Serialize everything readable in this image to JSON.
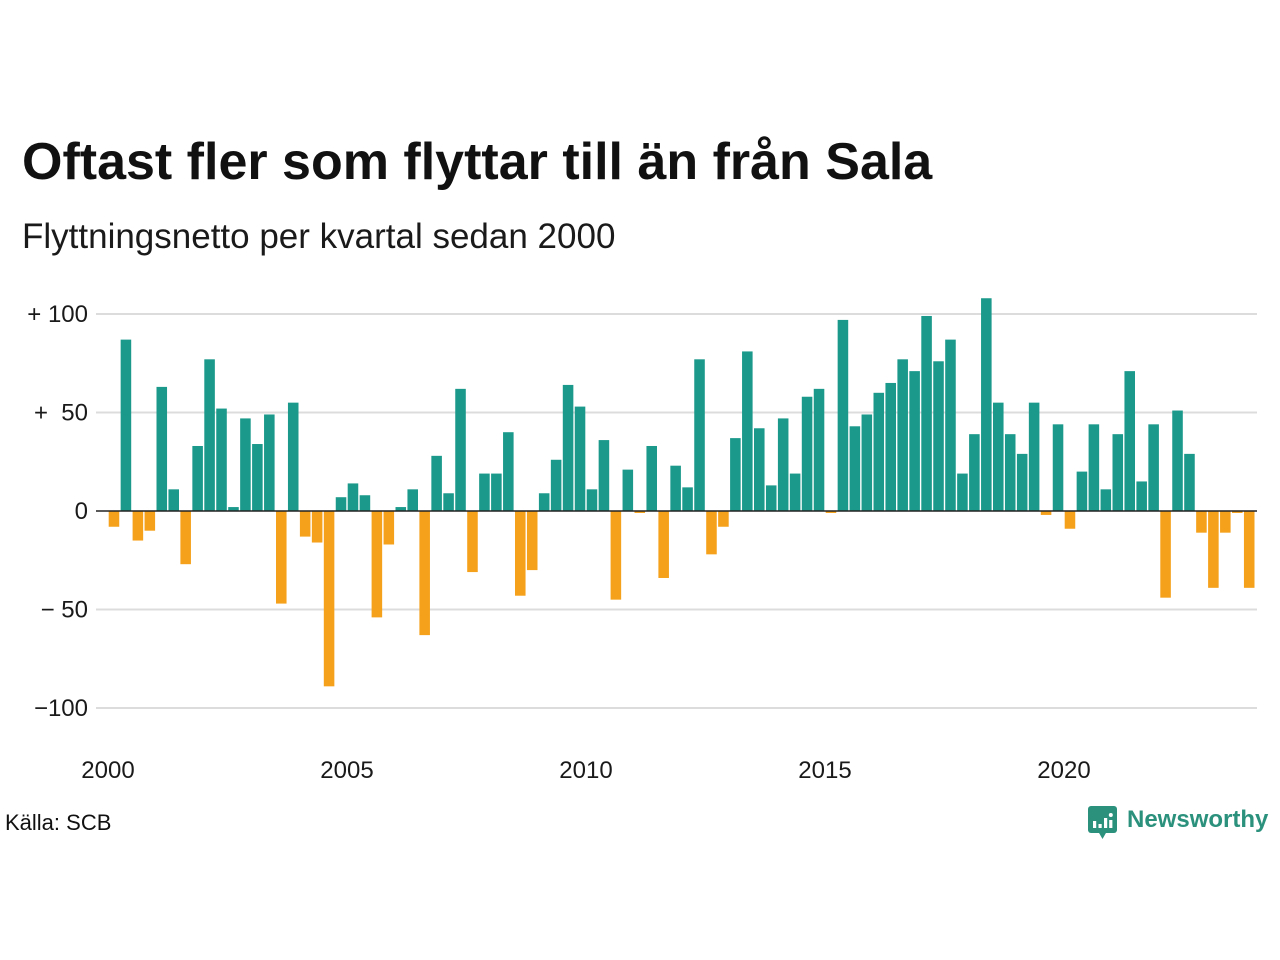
{
  "source": "Källa: SCB",
  "brand": {
    "name": "Newsworthy",
    "icon": "newsworthy-logo-icon",
    "color": "#2b917d"
  },
  "chart_data": {
    "type": "bar",
    "title": "Oftast fler som flyttar till än från Sala",
    "subtitle": "Flyttningsnetto per kvartal sedan 2000",
    "x": [
      "2000-01-01",
      "2000-04-01",
      "2000-07-01",
      "2000-10-01",
      "2001-01-01",
      "2001-04-01",
      "2001-07-01",
      "2001-10-01",
      "2002-01-01",
      "2002-04-01",
      "2002-07-01",
      "2002-10-01",
      "2003-01-01",
      "2003-04-01",
      "2003-07-01",
      "2003-10-01",
      "2004-01-01",
      "2004-04-01",
      "2004-07-01",
      "2004-10-01",
      "2005-01-01",
      "2005-04-01",
      "2005-07-01",
      "2005-10-01",
      "2006-01-01",
      "2006-04-01",
      "2006-07-01",
      "2006-10-01",
      "2007-01-01",
      "2007-04-01",
      "2007-07-01",
      "2007-10-01",
      "2008-01-01",
      "2008-04-01",
      "2008-07-01",
      "2008-10-01",
      "2009-01-01",
      "2009-04-01",
      "2009-07-01",
      "2009-10-01",
      "2010-01-01",
      "2010-04-01",
      "2010-07-01",
      "2010-10-01",
      "2011-01-01",
      "2011-04-01",
      "2011-07-01",
      "2011-10-01",
      "2012-01-01",
      "2012-04-01",
      "2012-07-01",
      "2012-10-01",
      "2013-01-01",
      "2013-04-01",
      "2013-07-01",
      "2013-10-01",
      "2014-01-01",
      "2014-04-01",
      "2014-07-01",
      "2014-10-01",
      "2015-01-01",
      "2015-04-01",
      "2015-07-01",
      "2015-10-01",
      "2016-01-01",
      "2016-04-01",
      "2016-07-01",
      "2016-10-01",
      "2017-01-01",
      "2017-04-01",
      "2017-07-01",
      "2017-10-01",
      "2018-01-01",
      "2018-04-01",
      "2018-07-01",
      "2018-10-01",
      "2019-01-01",
      "2019-04-01",
      "2019-07-01",
      "2019-10-01",
      "2020-01-01",
      "2020-04-01",
      "2020-07-01",
      "2020-10-01",
      "2021-01-01",
      "2021-04-01",
      "2021-07-01",
      "2021-10-01",
      "2022-01-01",
      "2022-04-01",
      "2022-07-01",
      "2022-10-01",
      "2023-01-01",
      "2023-04-01",
      "2023-07-01",
      "2023-10-01"
    ],
    "values": [
      -8,
      87,
      -15,
      -10,
      63,
      11,
      -27,
      33,
      77,
      52,
      2,
      47,
      34,
      49,
      -47,
      55,
      -13,
      -16,
      -89,
      7,
      14,
      8,
      -54,
      -17,
      2,
      11,
      -63,
      28,
      9,
      62,
      -31,
      19,
      19,
      40,
      -43,
      -30,
      9,
      26,
      64,
      53,
      11,
      36,
      -45,
      21,
      -1,
      33,
      -34,
      23,
      12,
      77,
      -22,
      -8,
      37,
      81,
      42,
      13,
      47,
      19,
      58,
      62,
      -1,
      97,
      43,
      49,
      60,
      65,
      77,
      71,
      99,
      76,
      87,
      19,
      39,
      108,
      55,
      39,
      29,
      55,
      -2,
      44,
      -9,
      20,
      44,
      11,
      39,
      71,
      15,
      44,
      -44,
      51,
      29,
      -11,
      -39,
      -11,
      -1,
      -39
    ],
    "xticks": [
      "2000",
      "2005",
      "2010",
      "2015",
      "2020"
    ],
    "yticks": [
      100,
      50,
      0,
      -50,
      -100
    ],
    "ytick_labels": [
      "+ 100",
      "+  50",
      "0",
      "− 50",
      "−100"
    ],
    "grid": true,
    "colors": {
      "positive": "#1b998b",
      "negative": "#f5a11b",
      "grid": "#dcdcdc",
      "zero_line": "#222222",
      "text": "#111111"
    }
  }
}
